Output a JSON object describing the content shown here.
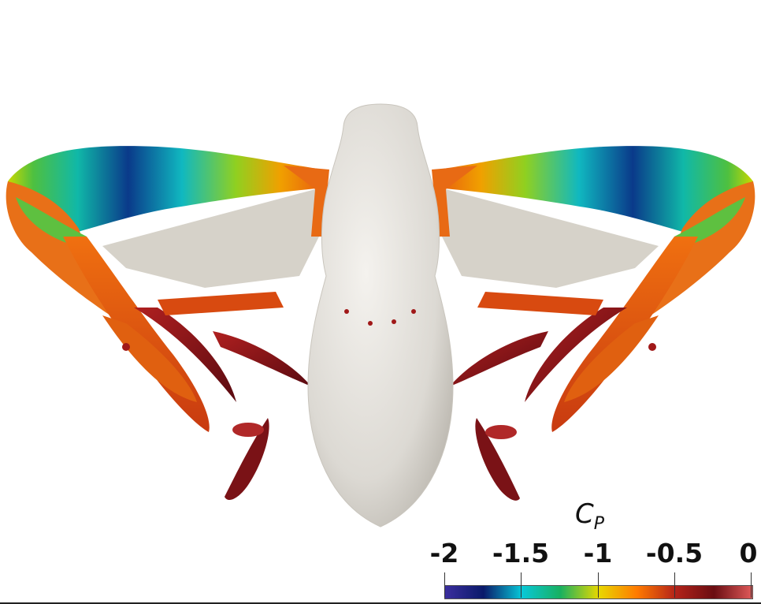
{
  "colorbar": {
    "title": "C",
    "title_subscript": "P",
    "ticks": [
      "-2",
      "-1.5",
      "-1",
      "-0.5",
      "0"
    ],
    "range": [
      -2,
      0
    ],
    "colormap_stops": [
      "#3b2e9e",
      "#0a1a6a",
      "#08c8d8",
      "#18b060",
      "#e8d800",
      "#ff7a00",
      "#b3231a",
      "#6a0d12",
      "#e05a5a"
    ]
  },
  "scene": {
    "body_color": "#dedbd5",
    "wing_surface_color": "#d8d4cc",
    "wake_color_warm": "#e06010",
    "wake_color_dark": "#7a1216"
  }
}
